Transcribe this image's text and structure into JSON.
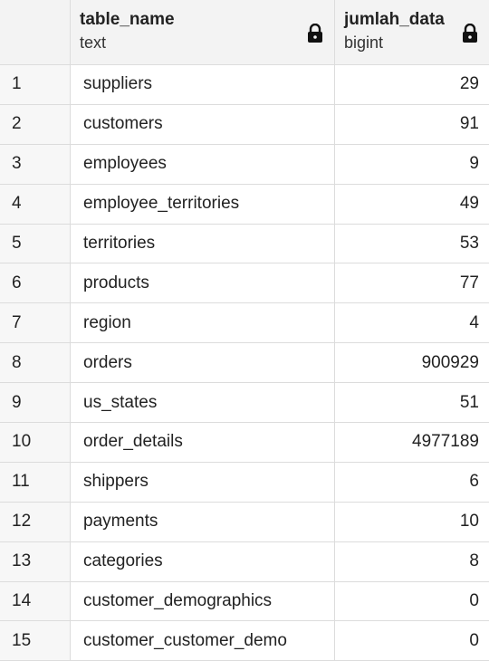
{
  "columns": {
    "name": {
      "title": "table_name",
      "type": "text"
    },
    "count": {
      "title": "jumlah_data",
      "type": "bigint"
    }
  },
  "icons": {
    "lock": "lock-icon"
  },
  "rows": [
    {
      "num": "1",
      "name": "suppliers",
      "count": "29"
    },
    {
      "num": "2",
      "name": "customers",
      "count": "91"
    },
    {
      "num": "3",
      "name": "employees",
      "count": "9"
    },
    {
      "num": "4",
      "name": "employee_territories",
      "count": "49"
    },
    {
      "num": "5",
      "name": "territories",
      "count": "53"
    },
    {
      "num": "6",
      "name": "products",
      "count": "77"
    },
    {
      "num": "7",
      "name": "region",
      "count": "4"
    },
    {
      "num": "8",
      "name": "orders",
      "count": "900929"
    },
    {
      "num": "9",
      "name": "us_states",
      "count": "51"
    },
    {
      "num": "10",
      "name": "order_details",
      "count": "4977189"
    },
    {
      "num": "11",
      "name": "shippers",
      "count": "6"
    },
    {
      "num": "12",
      "name": "payments",
      "count": "10"
    },
    {
      "num": "13",
      "name": "categories",
      "count": "8"
    },
    {
      "num": "14",
      "name": "customer_demographics",
      "count": "0"
    },
    {
      "num": "15",
      "name": "customer_customer_demo",
      "count": "0"
    }
  ]
}
